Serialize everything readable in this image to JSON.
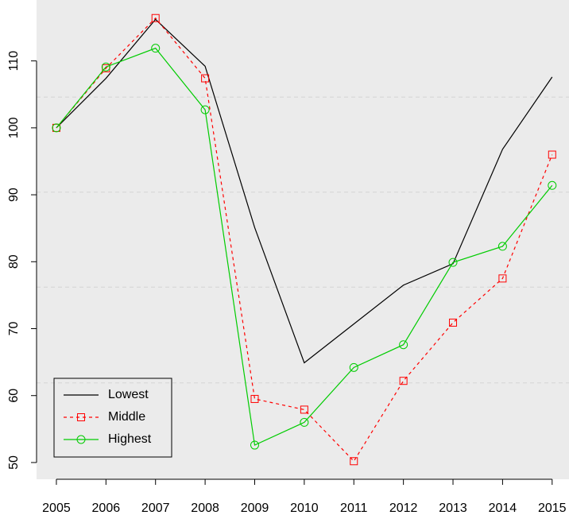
{
  "chart_data": {
    "type": "line",
    "x": [
      2005,
      2006,
      2007,
      2008,
      2009,
      2010,
      2011,
      2012,
      2013,
      2014,
      2015
    ],
    "series": [
      {
        "name": "Lowest",
        "color": "#000000",
        "dash": "solid",
        "marker": "none",
        "values": [
          100,
          107.4,
          116.2,
          109.2,
          85.1,
          64.9,
          70.7,
          76.5,
          79.7,
          96.8,
          107.6
        ]
      },
      {
        "name": "Middle",
        "color": "#ff0000",
        "dash": "dashed",
        "marker": "square",
        "values": [
          100,
          108.9,
          116.4,
          107.4,
          59.5,
          57.9,
          50.2,
          62.2,
          70.9,
          77.5,
          96.0
        ]
      },
      {
        "name": "Highest",
        "color": "#00cc00",
        "dash": "solid",
        "marker": "circle",
        "values": [
          100,
          109.1,
          111.9,
          102.7,
          52.6,
          56.0,
          64.2,
          67.6,
          79.9,
          82.3,
          91.4
        ]
      }
    ],
    "xlim": [
      2004.6,
      2015.34
    ],
    "ylim": [
      47.5,
      119.1
    ],
    "xticks": [
      2005,
      2006,
      2007,
      2008,
      2009,
      2010,
      2011,
      2012,
      2013,
      2014,
      2015
    ],
    "yticks": [
      50,
      60,
      70,
      80,
      90,
      100,
      110
    ],
    "grid_lines": [
      61.9,
      76.2,
      90.4,
      104.6
    ],
    "background": "#ebebeb",
    "legend": "bottom-left"
  }
}
